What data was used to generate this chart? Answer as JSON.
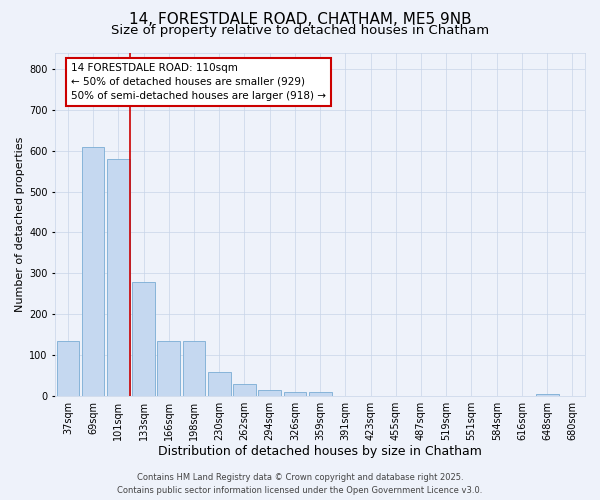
{
  "title": "14, FORESTDALE ROAD, CHATHAM, ME5 9NB",
  "subtitle": "Size of property relative to detached houses in Chatham",
  "xlabel": "Distribution of detached houses by size in Chatham",
  "ylabel": "Number of detached properties",
  "categories": [
    "37sqm",
    "69sqm",
    "101sqm",
    "133sqm",
    "166sqm",
    "198sqm",
    "230sqm",
    "262sqm",
    "294sqm",
    "326sqm",
    "359sqm",
    "391sqm",
    "423sqm",
    "455sqm",
    "487sqm",
    "519sqm",
    "551sqm",
    "584sqm",
    "616sqm",
    "648sqm",
    "680sqm"
  ],
  "values": [
    135,
    610,
    580,
    280,
    135,
    135,
    60,
    30,
    15,
    10,
    10,
    0,
    0,
    0,
    0,
    0,
    0,
    0,
    0,
    5,
    0
  ],
  "bar_color": "#c5d8f0",
  "bar_edge_color": "#7aadd4",
  "background_color": "#eef2fa",
  "grid_color": "#c8d4e8",
  "vline_x_index": 2,
  "vline_color": "#cc0000",
  "annotation_text": "14 FORESTDALE ROAD: 110sqm\n← 50% of detached houses are smaller (929)\n50% of semi-detached houses are larger (918) →",
  "annotation_box_facecolor": "#ffffff",
  "annotation_box_edgecolor": "#cc0000",
  "footer": "Contains HM Land Registry data © Crown copyright and database right 2025.\nContains public sector information licensed under the Open Government Licence v3.0.",
  "ylim": [
    0,
    840
  ],
  "yticks": [
    0,
    100,
    200,
    300,
    400,
    500,
    600,
    700,
    800
  ],
  "title_fontsize": 11,
  "subtitle_fontsize": 9.5,
  "xlabel_fontsize": 9,
  "ylabel_fontsize": 8,
  "tick_fontsize": 7,
  "annotation_fontsize": 7.5,
  "footer_fontsize": 6
}
